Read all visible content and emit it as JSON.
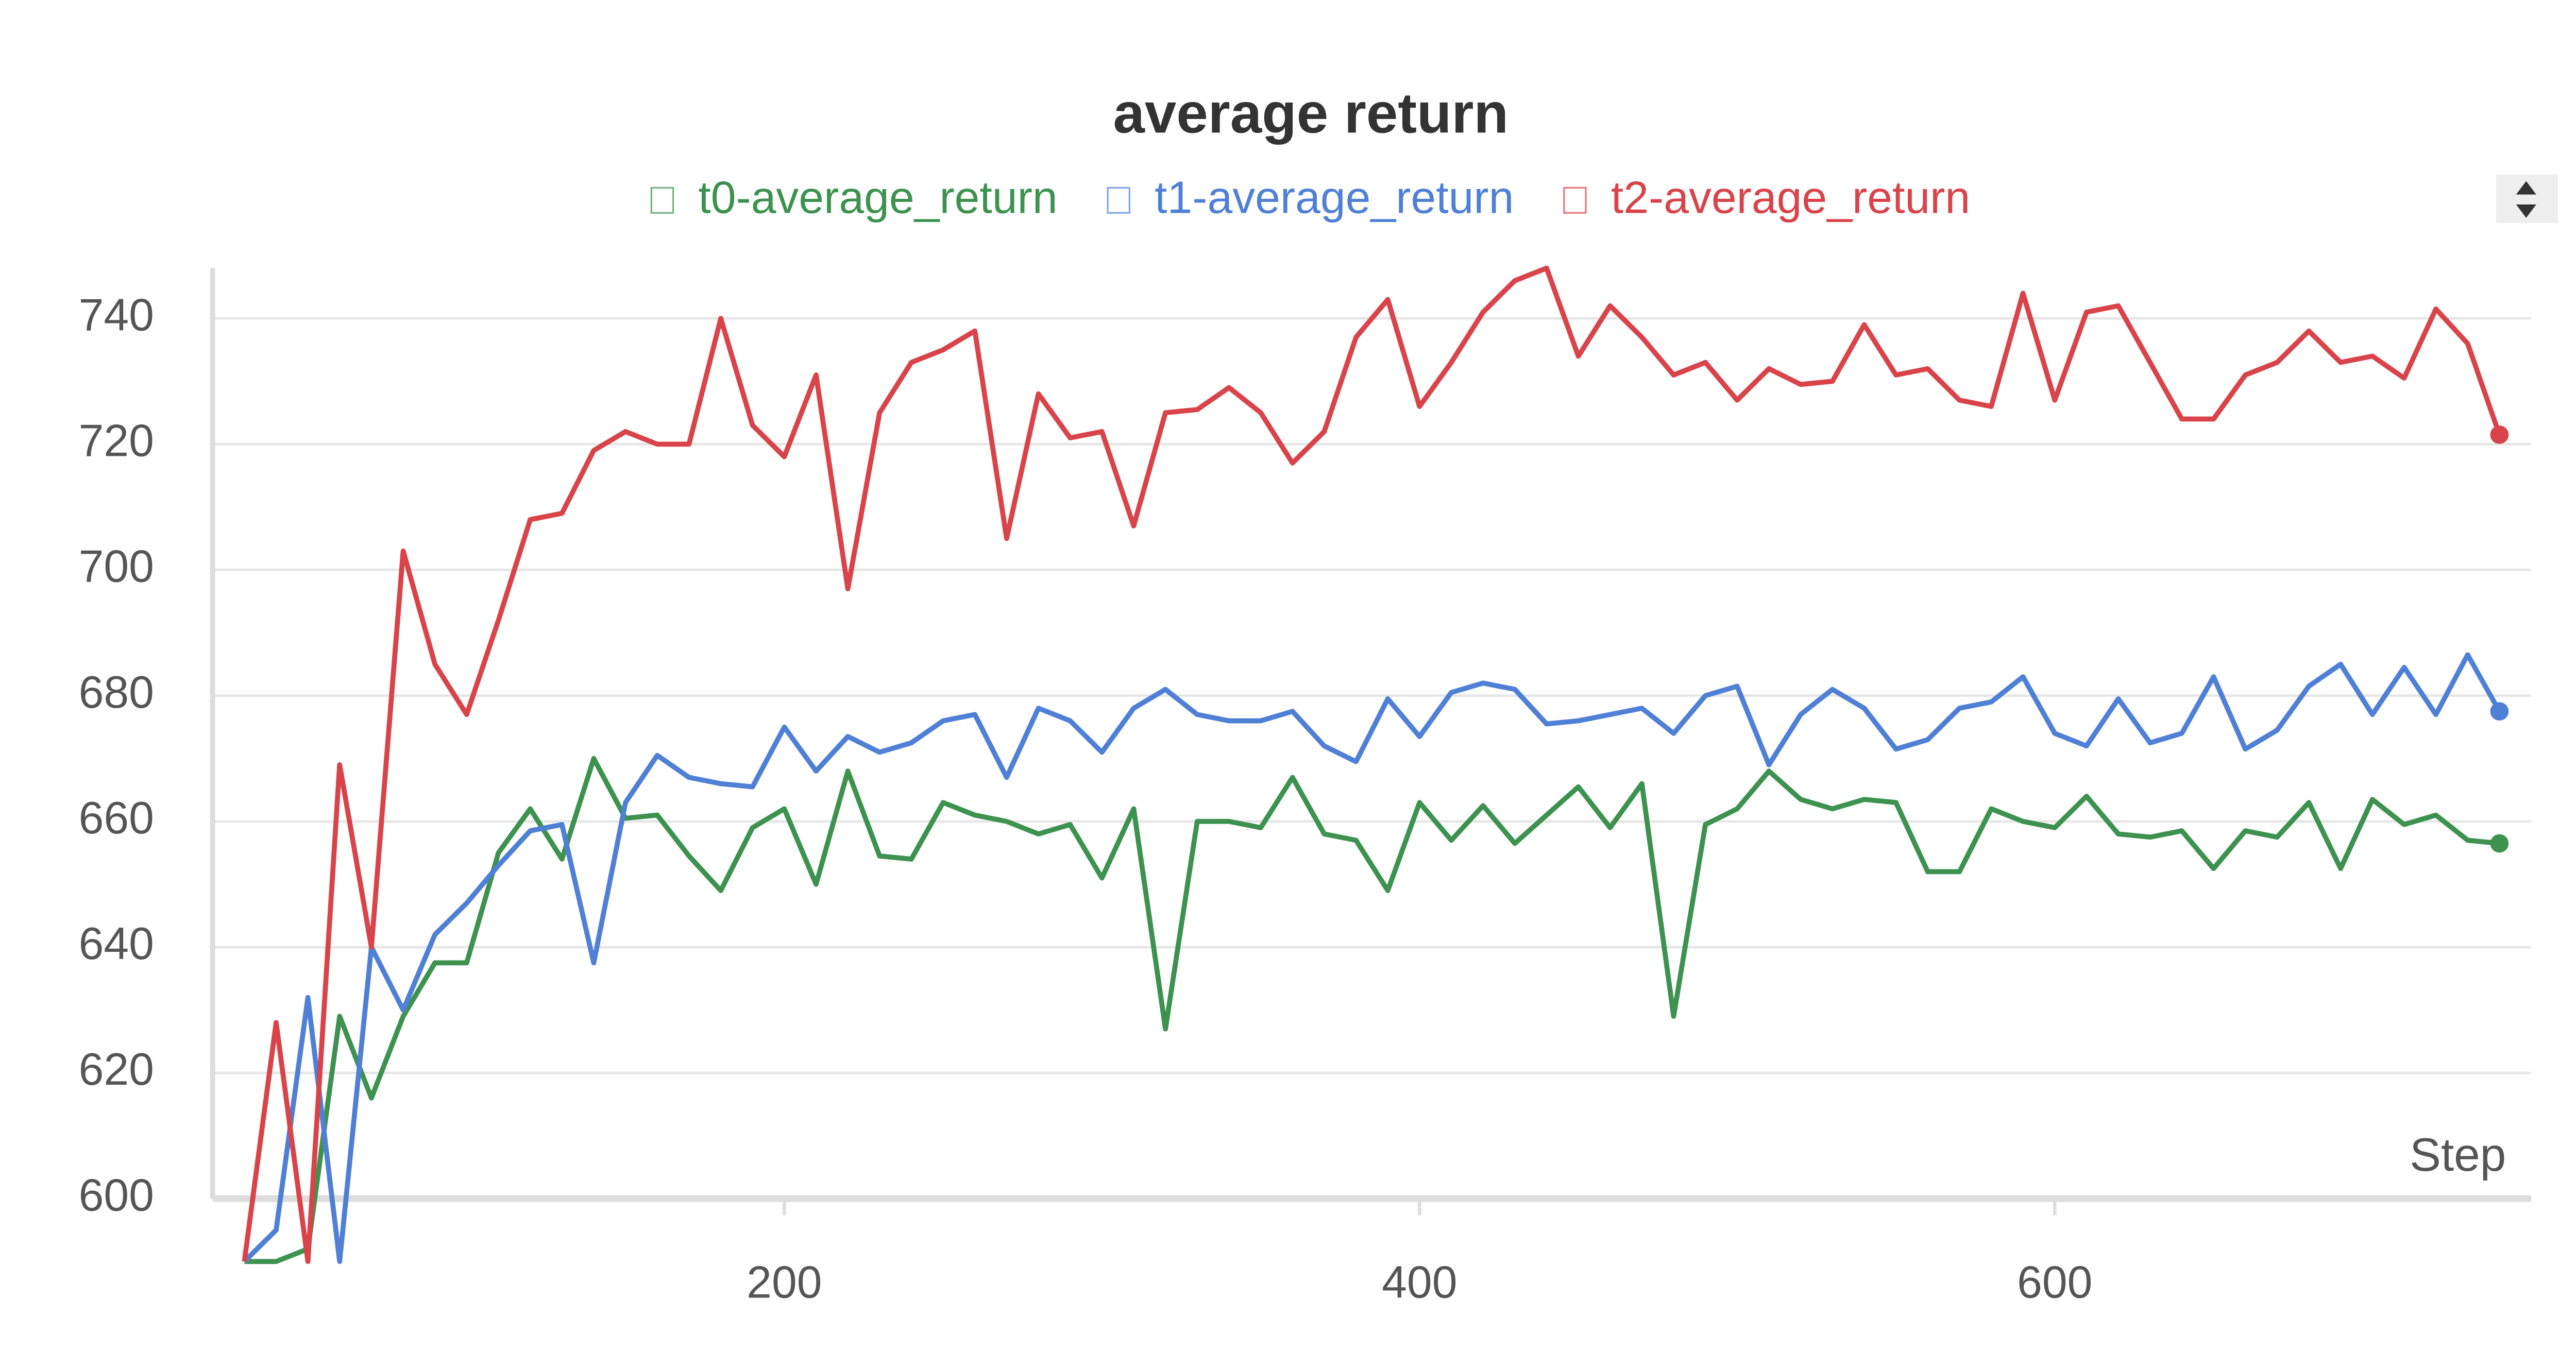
{
  "chart_data": {
    "type": "line",
    "title": "average return",
    "x_label": "Step",
    "x": [
      30,
      40,
      50,
      60,
      70,
      80,
      90,
      100,
      110,
      120,
      130,
      140,
      150,
      160,
      170,
      180,
      190,
      200,
      210,
      220,
      230,
      240,
      250,
      260,
      270,
      280,
      290,
      300,
      310,
      320,
      330,
      340,
      350,
      360,
      370,
      380,
      390,
      400,
      410,
      420,
      430,
      440,
      450,
      460,
      470,
      480,
      490,
      500,
      510,
      520,
      530,
      540,
      550,
      560,
      570,
      580,
      590,
      600,
      610,
      620,
      630,
      640,
      650,
      660,
      670,
      680,
      690,
      700,
      710,
      720,
      730,
      740
    ],
    "series": [
      {
        "name": "t0-average_return",
        "color": "#3d9250",
        "values": [
          590,
          590,
          592,
          629,
          616,
          629,
          637.5,
          637.5,
          655,
          662,
          654,
          670,
          660.5,
          661,
          654.5,
          649,
          659,
          662,
          650,
          668,
          654.5,
          654,
          663,
          661,
          660,
          658,
          659.5,
          651,
          662,
          627,
          660,
          660,
          659,
          667,
          658,
          657,
          649,
          663,
          657,
          662.5,
          656.5,
          661,
          665.5,
          659,
          666,
          629,
          659.5,
          662,
          668,
          663.5,
          662,
          663.5,
          663,
          652,
          652,
          662,
          660,
          659,
          664,
          658,
          657.5,
          658.5,
          652.5,
          658.5,
          657.5,
          663,
          652.5,
          663.5,
          659.5,
          661,
          657,
          656.5
        ]
      },
      {
        "name": "t1-average_return",
        "color": "#4f80d6",
        "values": [
          590,
          595,
          632,
          590,
          640,
          630,
          642,
          647,
          653,
          658.5,
          659.5,
          637.5,
          663,
          670.5,
          667,
          666,
          665.5,
          675,
          668,
          673.5,
          671,
          672.5,
          676,
          677,
          667,
          678,
          676,
          671,
          678,
          681,
          677,
          676,
          676,
          677.5,
          672,
          669.5,
          679.5,
          673.5,
          680.5,
          682,
          681,
          675.5,
          676,
          677,
          678,
          674,
          680,
          681.5,
          669,
          677,
          681,
          678,
          671.5,
          673,
          678,
          679,
          683,
          674,
          672,
          679.5,
          672.5,
          674,
          683,
          671.5,
          674.5,
          681.5,
          685,
          677,
          684.5,
          677,
          686.5,
          677.5
        ]
      },
      {
        "name": "t2-average_return",
        "color": "#d9434a",
        "values": [
          590,
          628,
          590,
          669,
          640,
          703,
          685,
          677,
          692,
          708,
          709,
          719,
          722,
          720,
          720,
          740,
          723,
          718,
          731,
          697,
          725,
          733,
          735,
          738,
          705,
          728,
          721,
          722,
          707,
          725,
          725.5,
          729,
          725,
          717,
          722,
          737,
          743,
          726,
          733,
          741,
          746,
          748,
          734,
          742,
          737,
          731,
          733,
          727,
          732,
          729.5,
          730,
          739,
          731,
          732,
          727,
          726,
          744,
          727,
          741,
          742,
          733,
          724,
          724,
          731,
          733,
          738,
          733,
          734,
          730.5,
          741.5,
          736,
          721.5
        ]
      }
    ],
    "xlim": [
      20,
      750
    ],
    "ylim": [
      600,
      748
    ],
    "xticks": [
      200,
      400,
      600
    ],
    "yticks": [
      600,
      620,
      640,
      660,
      680,
      700,
      720,
      740
    ],
    "grid": true
  }
}
